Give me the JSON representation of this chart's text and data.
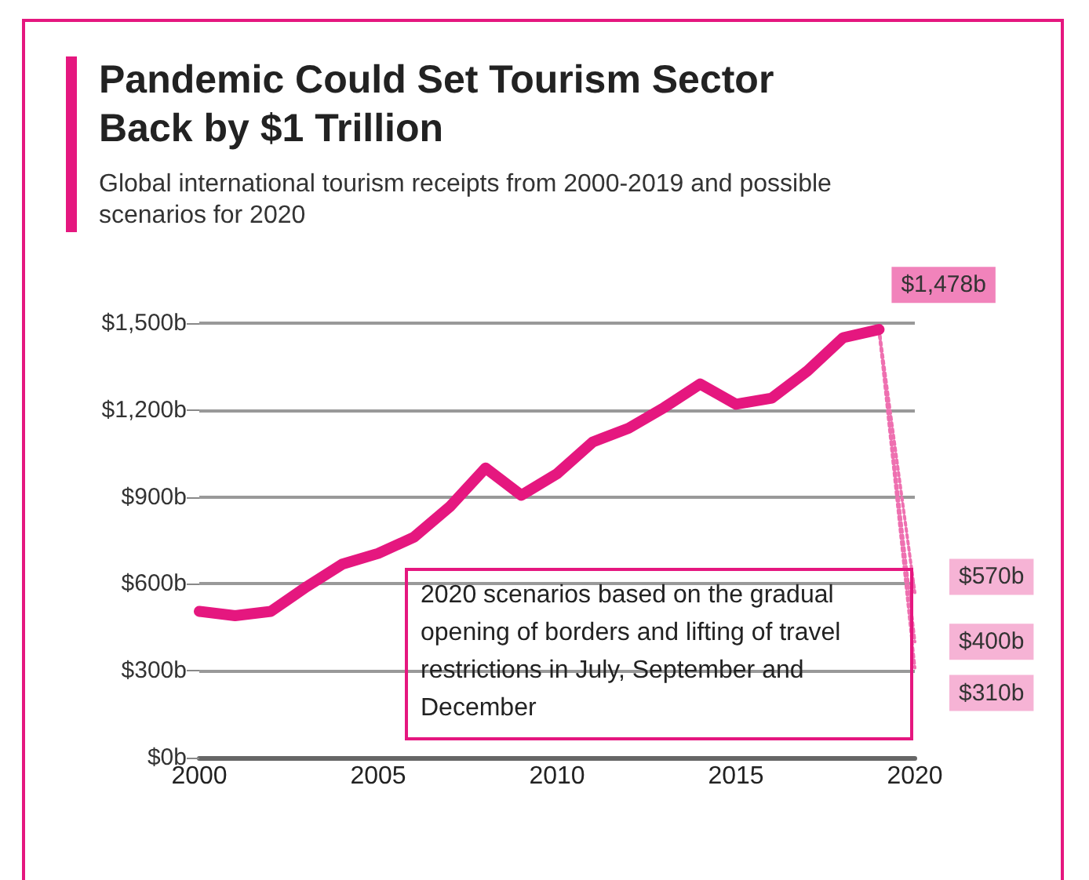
{
  "chart_data": {
    "type": "line",
    "title": "Pandemic Could Set Tourism Sector Back by $1 Trillion",
    "subtitle": "Global international tourism receipts from 2000-2019 and possible scenarios for 2020",
    "xlim": [
      2000,
      2020
    ],
    "xticks": [
      2000,
      2005,
      2010,
      2015,
      2020
    ],
    "ylim": [
      0,
      1500
    ],
    "yticks": [
      {
        "value": 0,
        "label": "$0b"
      },
      {
        "value": 300,
        "label": "$300b"
      },
      {
        "value": 600,
        "label": "$600b"
      },
      {
        "value": 900,
        "label": "$900b"
      },
      {
        "value": 1200,
        "label": "$1,200b"
      },
      {
        "value": 1500,
        "label": "$1,500b"
      }
    ],
    "grid": "y",
    "marker": "none",
    "series": [
      {
        "color": "#e5177f",
        "line_style": "solid",
        "x": [
          2000,
          2001,
          2002,
          2003,
          2004,
          2005,
          2006,
          2007,
          2008,
          2009,
          2010,
          2011,
          2012,
          2013,
          2014,
          2015,
          2016,
          2017,
          2018,
          2019
        ],
        "values": [
          505,
          490,
          505,
          590,
          668,
          705,
          761,
          866,
          1000,
          906,
          980,
          1090,
          1137,
          1209,
          1290,
          1220,
          1241,
          1335,
          1450,
          1478
        ],
        "value_labels": [
          null,
          null,
          null,
          null,
          null,
          null,
          null,
          null,
          null,
          null,
          null,
          null,
          null,
          null,
          null,
          null,
          null,
          null,
          null,
          "$1,478b"
        ]
      },
      {
        "color": "#ee70b0",
        "line_style": "dotted",
        "x": [
          2019,
          2020
        ],
        "values": [
          1478,
          570
        ],
        "value_labels": [
          null,
          "$570b"
        ]
      },
      {
        "color": "#ee70b0",
        "line_style": "dotted",
        "x": [
          2019,
          2020
        ],
        "values": [
          1478,
          400
        ],
        "value_labels": [
          null,
          "$400b"
        ]
      },
      {
        "color": "#ee70b0",
        "line_style": "dotted",
        "x": [
          2019,
          2020
        ],
        "values": [
          1478,
          310
        ],
        "value_labels": [
          null,
          "$310b"
        ]
      }
    ],
    "annotations": [
      "2020 scenarios based on the gradual opening of borders and lifting of travel restrictions in July, September and December"
    ]
  }
}
